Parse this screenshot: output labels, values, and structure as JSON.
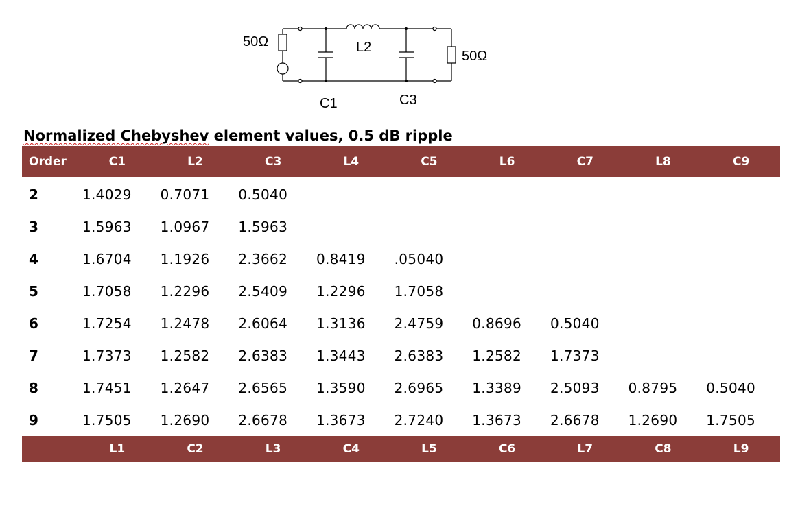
{
  "circuit": {
    "source_resistor": "50Ω",
    "load_resistor": "50Ω",
    "inductor": "L2",
    "capacitor_1": "C1",
    "capacitor_2": "C3"
  },
  "title": {
    "spelled_part": "Normalized Chebyshev",
    "rest": " element values, 0.5 dB ripple"
  },
  "table": {
    "header": [
      "Order",
      "C1",
      "L2",
      "C3",
      "L4",
      "C5",
      "L6",
      "C7",
      "L8",
      "C9"
    ],
    "rows": [
      {
        "order": "2",
        "values": [
          "1.4029",
          "0.7071",
          "0.5040",
          "",
          "",
          "",
          "",
          "",
          ""
        ]
      },
      {
        "order": "3",
        "values": [
          "1.5963",
          "1.0967",
          "1.5963",
          "",
          "",
          "",
          "",
          "",
          ""
        ]
      },
      {
        "order": "4",
        "values": [
          "1.6704",
          "1.1926",
          "2.3662",
          "0.8419",
          ".05040",
          "",
          "",
          "",
          ""
        ]
      },
      {
        "order": "5",
        "values": [
          "1.7058",
          "1.2296",
          "2.5409",
          "1.2296",
          "1.7058",
          "",
          "",
          "",
          ""
        ]
      },
      {
        "order": "6",
        "values": [
          "1.7254",
          "1.2478",
          "2.6064",
          "1.3136",
          "2.4759",
          "0.8696",
          "0.5040",
          "",
          ""
        ]
      },
      {
        "order": "7",
        "values": [
          "1.7373",
          "1.2582",
          "2.6383",
          "1.3443",
          "2.6383",
          "1.2582",
          "1.7373",
          "",
          ""
        ]
      },
      {
        "order": "8",
        "values": [
          "1.7451",
          "1.2647",
          "2.6565",
          "1.3590",
          "2.6965",
          "1.3389",
          "2.5093",
          "0.8795",
          "0.5040"
        ]
      },
      {
        "order": "9",
        "values": [
          "1.7505",
          "1.2690",
          "2.6678",
          "1.3673",
          "2.7240",
          "1.3673",
          "2.6678",
          "1.2690",
          "1.7505"
        ]
      }
    ],
    "footer": [
      "",
      "L1",
      "C2",
      "L3",
      "C4",
      "L5",
      "C6",
      "L7",
      "C8",
      "L9"
    ]
  },
  "colors": {
    "header_background": "#8b3d39",
    "header_text": "#ffffff"
  }
}
